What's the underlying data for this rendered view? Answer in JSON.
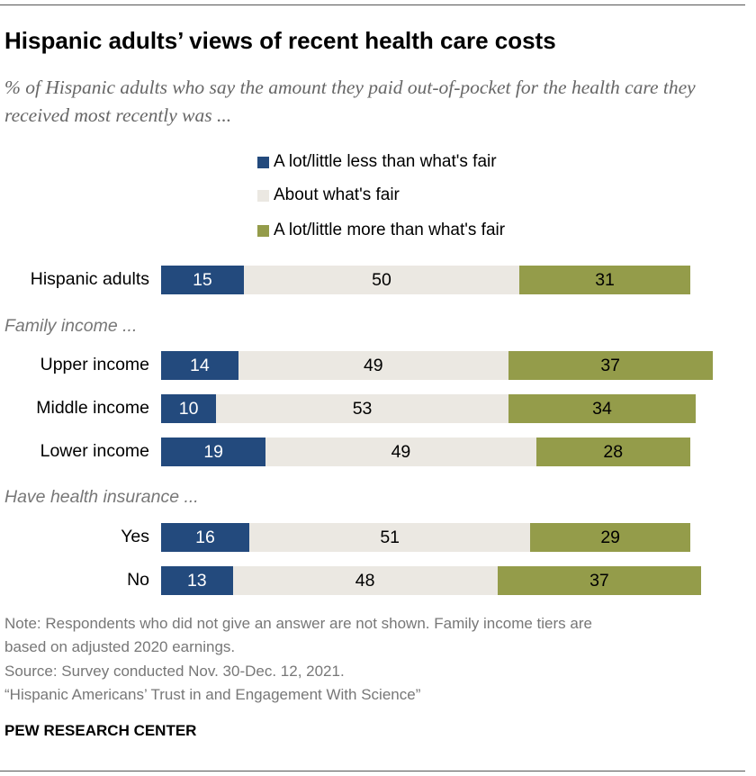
{
  "title": "Hispanic adults’ views of recent health care costs",
  "subtitle": "% of Hispanic adults who say the amount they paid out-of-pocket for the health care they received most recently was ...",
  "colors": {
    "less": "#234a7d",
    "about": "#ebe8e2",
    "more": "#949c4a"
  },
  "chart_data": {
    "type": "bar",
    "orientation": "horizontal-stacked",
    "legend": [
      "A lot/little less than what's fair",
      "About what's fair",
      "A lot/little more than what's fair"
    ],
    "legend_placement": "top",
    "groups": [
      {
        "label": "",
        "rows": [
          {
            "label": "Hispanic adults",
            "values": [
              15,
              50,
              31
            ]
          }
        ]
      },
      {
        "label": "Family income ...",
        "rows": [
          {
            "label": "Upper income",
            "values": [
              14,
              49,
              37
            ]
          },
          {
            "label": "Middle income",
            "values": [
              10,
              53,
              34
            ]
          },
          {
            "label": "Lower income",
            "values": [
              19,
              49,
              28
            ]
          }
        ]
      },
      {
        "label": "Have health insurance ...",
        "rows": [
          {
            "label": "Yes",
            "values": [
              16,
              51,
              29
            ]
          },
          {
            "label": "No",
            "values": [
              13,
              48,
              37
            ]
          }
        ]
      }
    ],
    "grid": false
  },
  "notes": [
    "Note: Respondents who did not give an answer are not shown. Family income tiers are",
    "based on adjusted 2020 earnings.",
    "Source: Survey conducted Nov. 30-Dec. 12, 2021.",
    "“Hispanic Americans’ Trust in and Engagement With Science”"
  ],
  "source_org": "PEW RESEARCH CENTER"
}
